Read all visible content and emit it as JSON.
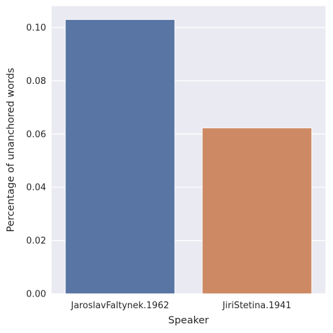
{
  "chart_data": {
    "type": "bar",
    "title": "",
    "xlabel": "Speaker",
    "ylabel": "Percentage of unanchored words",
    "categories": [
      "JaroslavFaltynek.1962",
      "JiriStetina.1941"
    ],
    "values": [
      0.103,
      0.0623
    ],
    "colors": [
      "#5875a4",
      "#cc8963"
    ],
    "ylim": [
      0,
      0.108
    ],
    "yticks": [
      0.0,
      0.02,
      0.04,
      0.06,
      0.08,
      0.1
    ],
    "ytick_labels": [
      "0.00",
      "0.02",
      "0.04",
      "0.06",
      "0.08",
      "0.10"
    ],
    "grid": true,
    "background": "#eaeaf2",
    "grid_color": "#ffffff"
  }
}
